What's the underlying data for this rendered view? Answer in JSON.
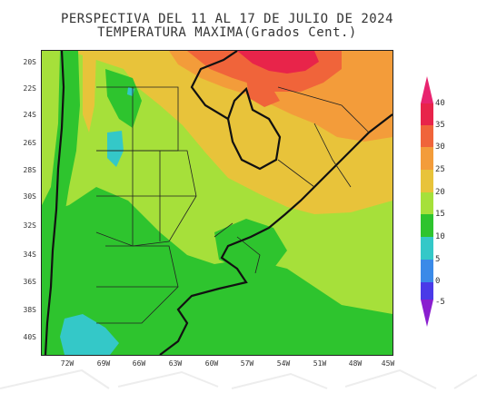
{
  "title": {
    "line1": "PERSPECTIVA DEL 11 AL 17 DE JULIO DE 2024",
    "line2": "TEMPERATURA MAXIMA(Grados Cent.)"
  },
  "y_axis_labels": [
    "20S",
    "22S",
    "24S",
    "26S",
    "28S",
    "30S",
    "32S",
    "34S",
    "36S",
    "38S",
    "40S"
  ],
  "x_axis_labels": [
    "72W",
    "69W",
    "66W",
    "63W",
    "60W",
    "57W",
    "54W",
    "51W",
    "48W",
    "45W"
  ],
  "colorbar": {
    "labels": [
      "40",
      "35",
      "30",
      "25",
      "20",
      "15",
      "10",
      "5",
      "0",
      "-5"
    ],
    "colors": [
      "#e8244a",
      "#f0643a",
      "#f39c3a",
      "#e8c33a",
      "#a6e03a",
      "#2ec42e",
      "#34c8c8",
      "#3a8ae8",
      "#4a3ae8",
      "#9b2ec4"
    ],
    "top_color": "#e8246f",
    "bottom_color": "#8a1ecf"
  },
  "chart_data": {
    "type": "heatmap",
    "variable": "TEMPERATURA MAXIMA",
    "units": "Grados Cent.",
    "lat_range": [
      "41S",
      "19S"
    ],
    "lon_range": [
      "73W",
      "45W"
    ],
    "levels": [
      -5,
      0,
      5,
      10,
      15,
      20,
      25,
      30,
      35,
      40
    ]
  }
}
